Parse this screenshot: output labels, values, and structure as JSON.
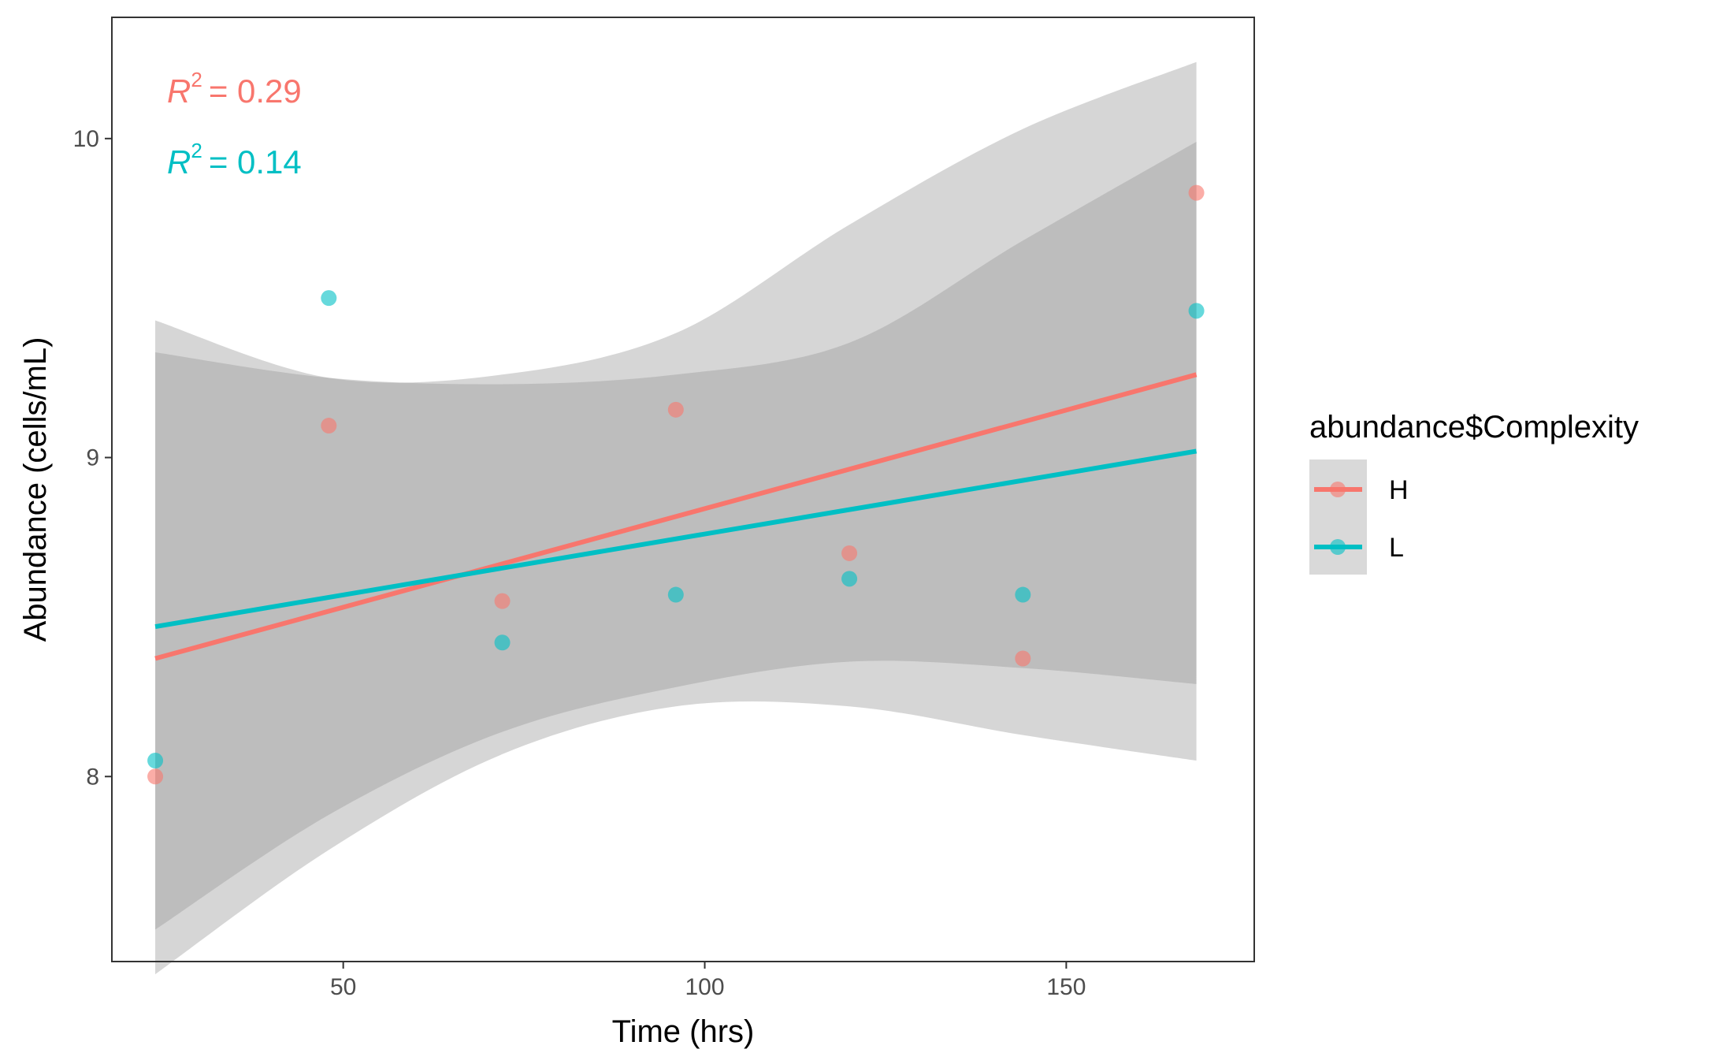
{
  "chart_data": {
    "type": "scatter",
    "xlabel": "Time (hrs)",
    "ylabel": "Abundance (cells/mL)",
    "xlim": [
      18,
      176
    ],
    "ylim": [
      7.42,
      10.38
    ],
    "x_ticks": [
      50,
      100,
      150
    ],
    "y_ticks": [
      8,
      9,
      10
    ],
    "grid": false,
    "legend": {
      "title": "abundance$Complexity",
      "placement": "right",
      "entries": [
        "H",
        "L"
      ]
    },
    "annotations": [
      {
        "series": "H",
        "text": "= 0.29",
        "r_label": "R",
        "sup": "2"
      },
      {
        "series": "L",
        "text": "= 0.14",
        "r_label": "R",
        "sup": "2"
      }
    ],
    "series": [
      {
        "name": "H",
        "color": "#F8766D",
        "points": [
          {
            "x": 24,
            "y": 8.0
          },
          {
            "x": 48,
            "y": 9.1
          },
          {
            "x": 72,
            "y": 8.55
          },
          {
            "x": 96,
            "y": 9.15
          },
          {
            "x": 120,
            "y": 8.7
          },
          {
            "x": 144,
            "y": 8.37
          },
          {
            "x": 168,
            "y": 9.83
          }
        ],
        "fit": {
          "x": [
            24,
            168
          ],
          "y": [
            8.37,
            9.26
          ]
        },
        "ci": {
          "x": [
            24,
            48,
            72,
            96,
            120,
            144,
            168
          ],
          "lower": [
            7.38,
            7.77,
            8.07,
            8.22,
            8.22,
            8.13,
            8.05
          ],
          "upper": [
            9.43,
            9.25,
            9.26,
            9.39,
            9.73,
            10.03,
            10.24
          ]
        }
      },
      {
        "name": "L",
        "color": "#00BFC4",
        "points": [
          {
            "x": 24,
            "y": 8.05
          },
          {
            "x": 48,
            "y": 9.5
          },
          {
            "x": 72,
            "y": 8.42
          },
          {
            "x": 96,
            "y": 8.57
          },
          {
            "x": 120,
            "y": 8.62
          },
          {
            "x": 144,
            "y": 8.57
          },
          {
            "x": 168,
            "y": 9.46
          }
        ],
        "fit": {
          "x": [
            24,
            168
          ],
          "y": [
            8.47,
            9.02
          ]
        },
        "ci": {
          "x": [
            24,
            48,
            72,
            96,
            120,
            144,
            168
          ],
          "lower": [
            7.52,
            7.88,
            8.14,
            8.28,
            8.36,
            8.34,
            8.29
          ],
          "upper": [
            9.33,
            9.25,
            9.23,
            9.26,
            9.36,
            9.68,
            9.99
          ]
        }
      }
    ]
  }
}
